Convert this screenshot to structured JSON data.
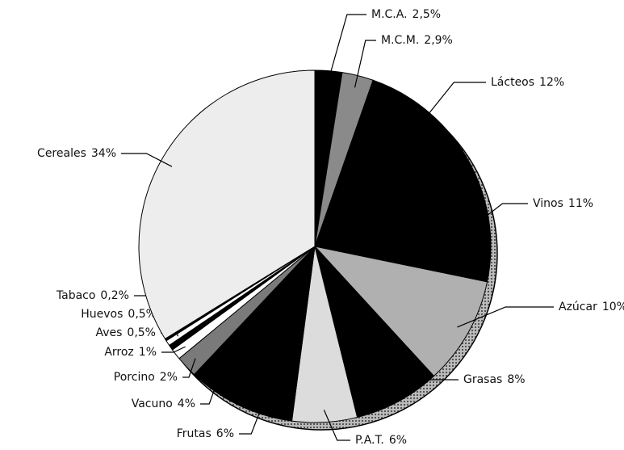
{
  "chart_data": {
    "type": "pie",
    "categories": [
      "M.C.A.",
      "M.C.M.",
      "Lácteos",
      "Vinos",
      "Azúcar",
      "Grasas",
      "P.A.T.",
      "Frutas",
      "Vacuno",
      "Porcino",
      "Arroz",
      "Aves",
      "Huevos",
      "Tabaco",
      "Cereales"
    ],
    "values": [
      2.5,
      2.9,
      12,
      11,
      10,
      8,
      6,
      6,
      4,
      2,
      1,
      0.5,
      0.5,
      0.2,
      34
    ],
    "value_labels": [
      "2,5%",
      "2,9%",
      "12%",
      "11%",
      "10%",
      "8%",
      "6%",
      "6%",
      "4%",
      "2%",
      "1%",
      "0,5%",
      "0,5%",
      "0,2%",
      "34%"
    ],
    "colors": [
      "#000000",
      "#8a8a8a",
      "#000000",
      "#000000",
      "#b0b0b0",
      "#000000",
      "#dcdcdc",
      "#000000",
      "#000000",
      "#7a7a7a",
      "#ffffff",
      "#000000",
      "#ffffff",
      "#000000",
      "#ededed"
    ]
  }
}
